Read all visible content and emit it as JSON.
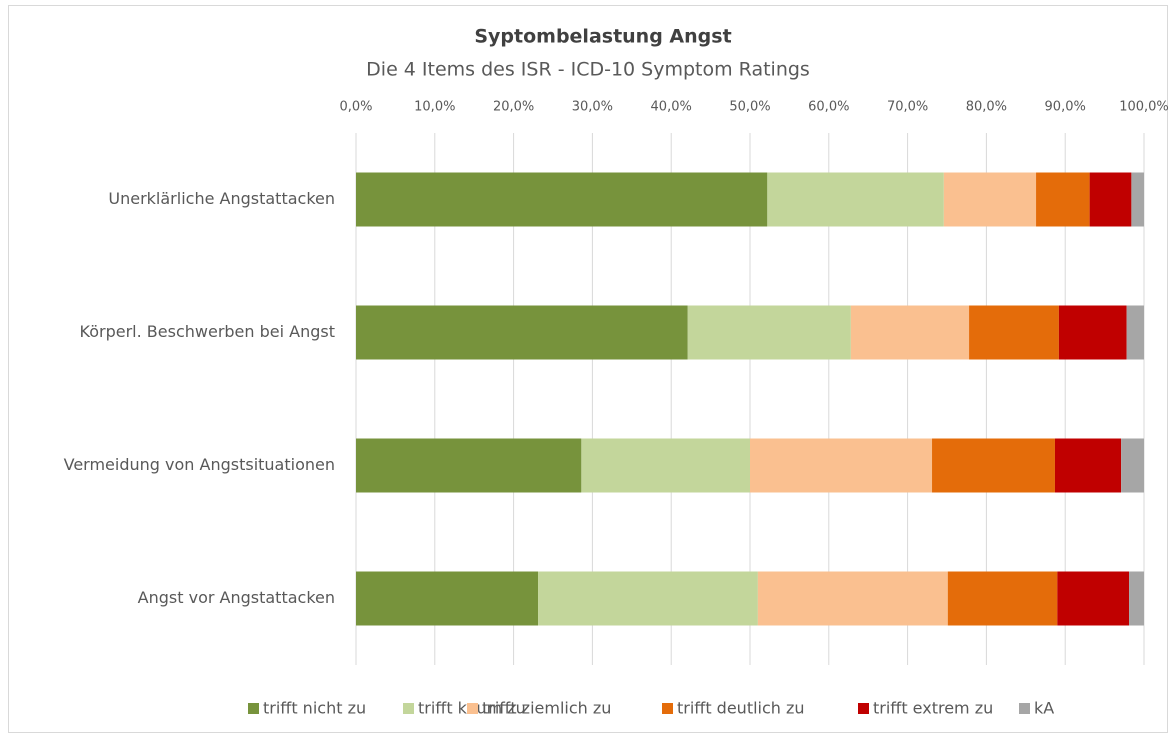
{
  "chart_data": {
    "type": "stacked-bar-horizontal",
    "title": "Syptombelastung Angst",
    "subtitle": "Die 4 Items des ISR - ICD-10 Symptom Ratings",
    "categories": [
      "Unerklärliche Angstattacken",
      "Körperl. Beschwerben bei Angst",
      "Vermeidung von Angstsituationen",
      "Angst vor Angstattacken"
    ],
    "series": [
      {
        "name": "trifft nicht zu",
        "color": "#77933c",
        "values": [
          52.2,
          42.1,
          28.6,
          23.1
        ]
      },
      {
        "name": "trifft kaum zu",
        "color": "#c3d69b",
        "values": [
          22.4,
          20.7,
          21.4,
          27.9
        ]
      },
      {
        "name": "trifft ziemlich zu",
        "color": "#fac090",
        "values": [
          11.7,
          15.0,
          23.1,
          24.1
        ]
      },
      {
        "name": "trifft deutlich zu",
        "color": "#e46c0a",
        "values": [
          6.8,
          11.4,
          15.6,
          13.9
        ]
      },
      {
        "name": "trifft extrem zu",
        "color": "#c00000",
        "values": [
          5.3,
          8.6,
          8.4,
          9.1
        ]
      },
      {
        "name": "kA",
        "color": "#a6a6a6",
        "values": [
          1.6,
          2.2,
          2.9,
          1.9
        ]
      }
    ],
    "xlim": [
      0,
      100
    ],
    "xticks": [
      {
        "value": 0,
        "label": "0,0%"
      },
      {
        "value": 10,
        "label": "10,0%"
      },
      {
        "value": 20,
        "label": "20,0%"
      },
      {
        "value": 30,
        "label": "30,0%"
      },
      {
        "value": 40,
        "label": "40,0%"
      },
      {
        "value": 50,
        "label": "50,0%"
      },
      {
        "value": 60,
        "label": "60,0%"
      },
      {
        "value": 70,
        "label": "70,0%"
      },
      {
        "value": 80,
        "label": "80,0%"
      },
      {
        "value": 90,
        "label": "90,0%"
      },
      {
        "value": 100,
        "label": "100,0%"
      }
    ],
    "grid": true,
    "legend": "bottom"
  }
}
